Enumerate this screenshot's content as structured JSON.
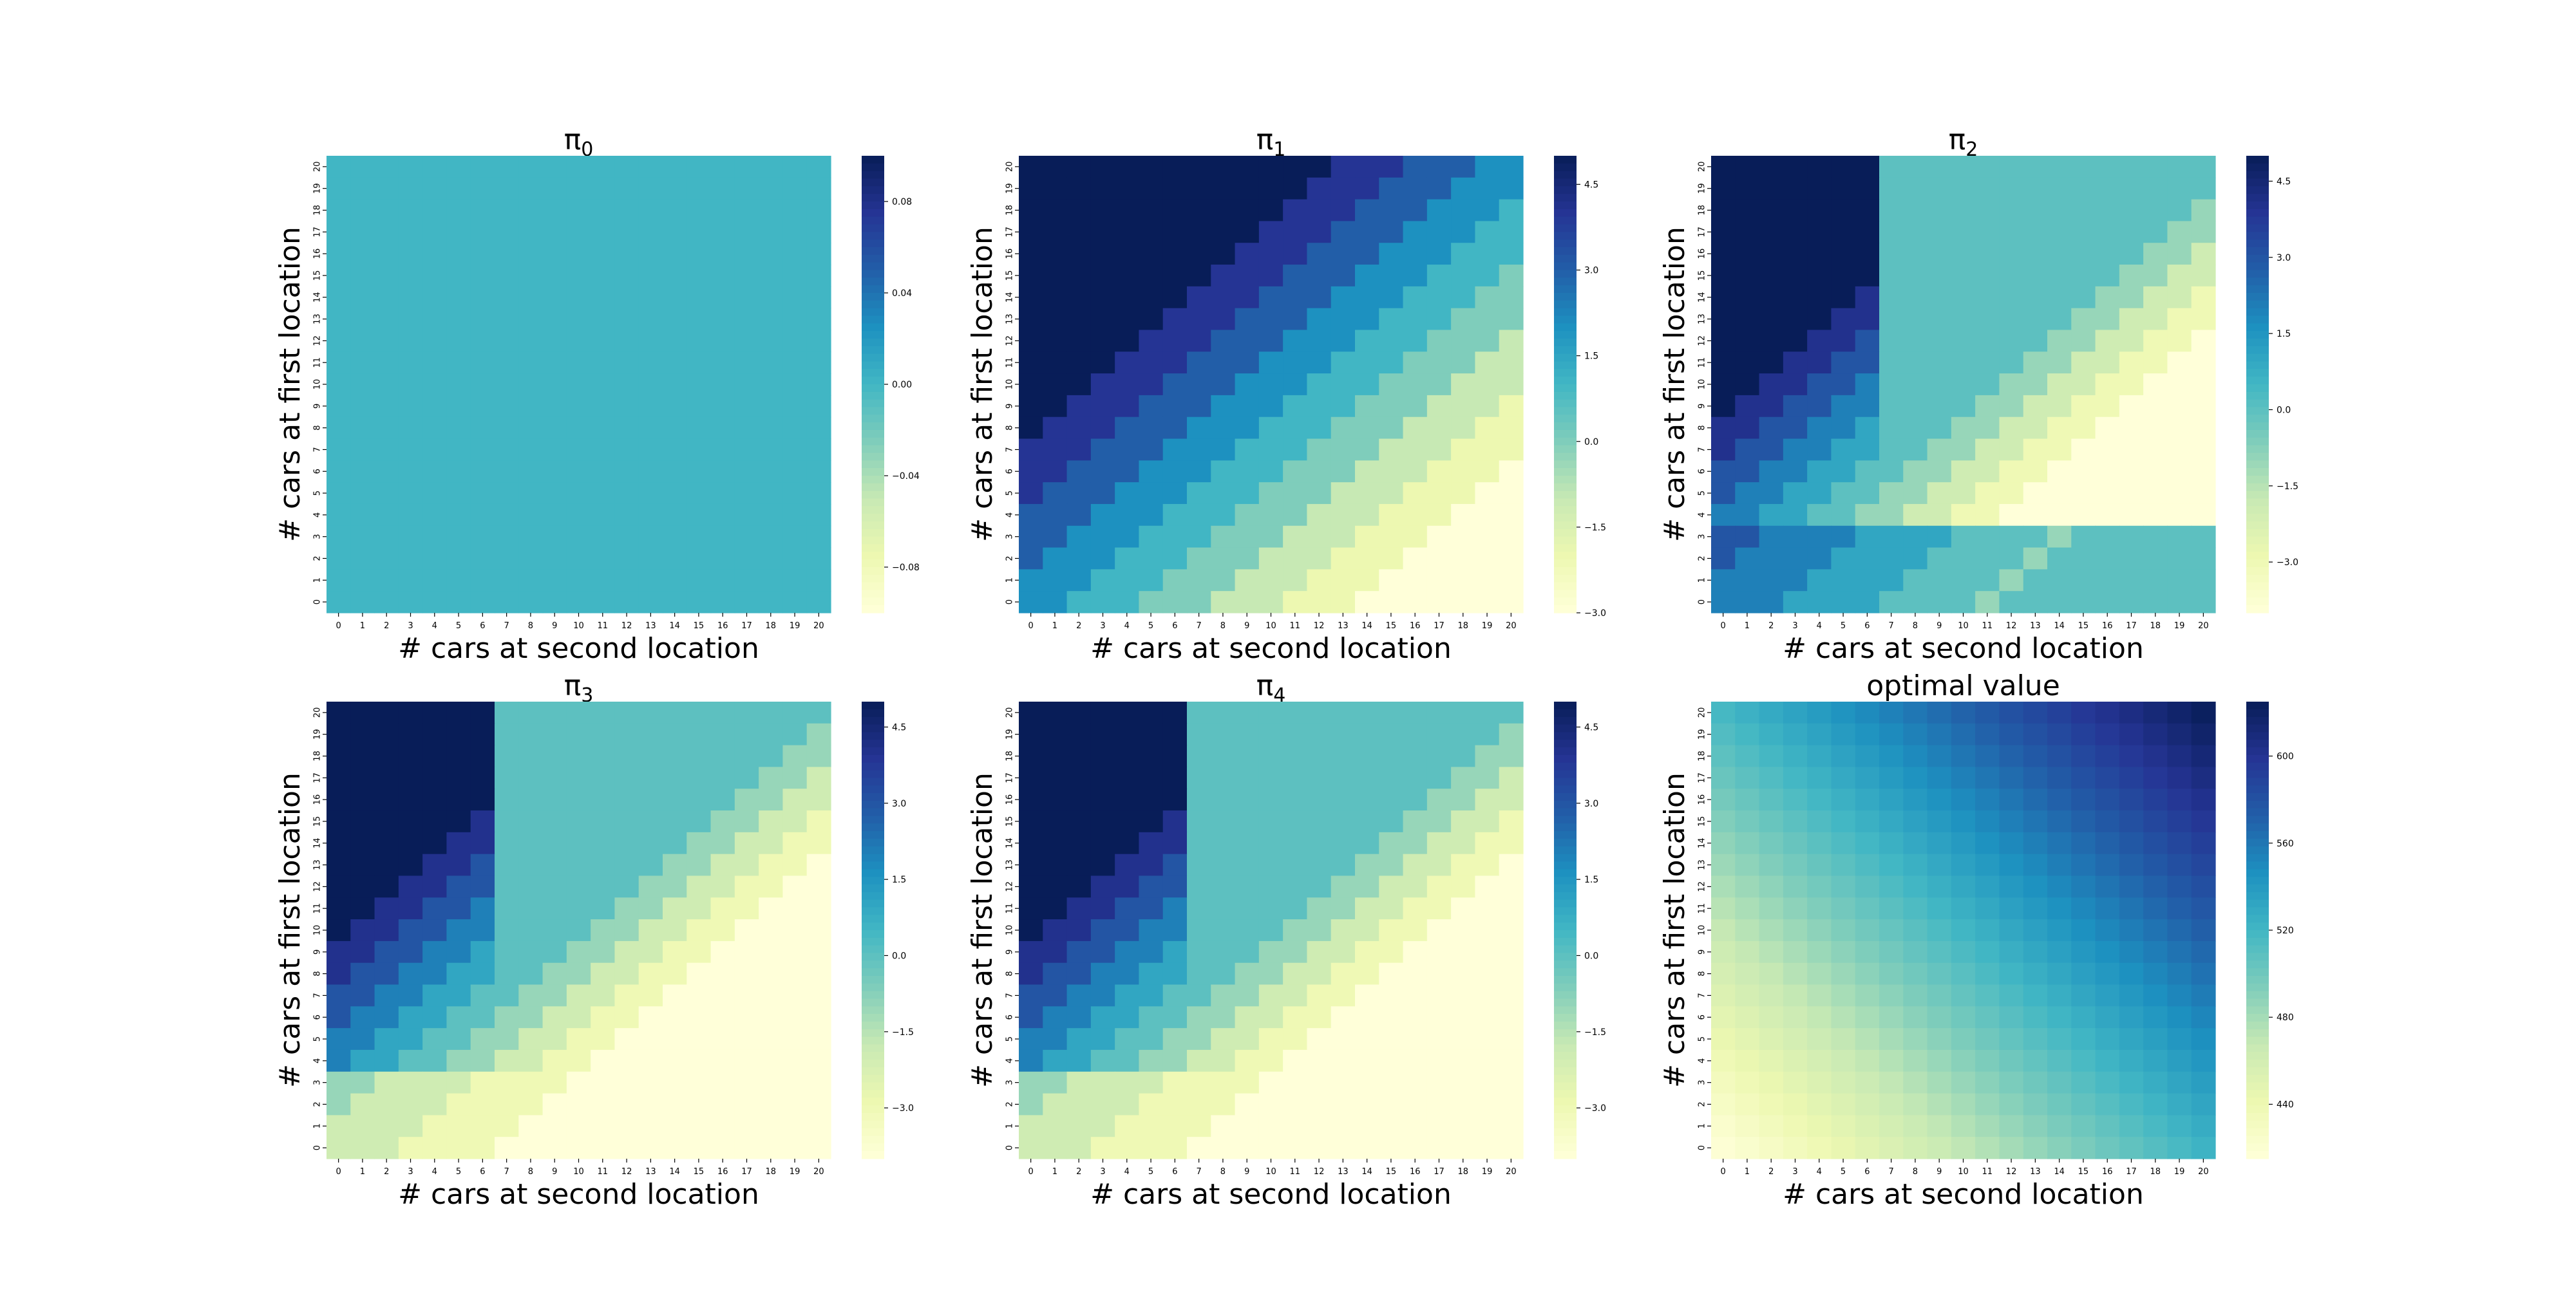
{
  "figure": {
    "rows": 2,
    "cols": 3
  },
  "colormap": {
    "name": "YlGnBu",
    "stops": [
      "#ffffd9",
      "#edf8b1",
      "#c7e9b4",
      "#7fcdbb",
      "#41b6c4",
      "#1d91c0",
      "#225ea8",
      "#253494",
      "#081d58"
    ]
  },
  "chart_data": [
    {
      "type": "heatmap",
      "title": "π₀",
      "title_main": "π",
      "title_sub": "0",
      "xlabel": "# cars at second location",
      "ylabel": "# cars at first location",
      "x_ticks": [
        "0",
        "1",
        "2",
        "3",
        "4",
        "5",
        "6",
        "7",
        "8",
        "9",
        "10",
        "11",
        "12",
        "13",
        "14",
        "15",
        "16",
        "17",
        "18",
        "19",
        "20"
      ],
      "y_ticks": [
        "20",
        "19",
        "18",
        "17",
        "16",
        "15",
        "14",
        "13",
        "12",
        "11",
        "10",
        "9",
        "8",
        "7",
        "6",
        "5",
        "4",
        "3",
        "2",
        "1",
        "0"
      ],
      "vmin": -0.1,
      "vmax": 0.1,
      "colorbar_ticks": [
        -0.08,
        -0.04,
        0.0,
        0.04,
        0.08
      ],
      "colorbar_labels": [
        "−0.08",
        "−0.04",
        "0.00",
        "0.04",
        "0.08"
      ],
      "value_rule": "all_zero"
    },
    {
      "type": "heatmap",
      "title": "π₁",
      "title_main": "π",
      "title_sub": "1",
      "xlabel": "# cars at second location",
      "ylabel": "# cars at first location",
      "x_ticks": [
        "0",
        "1",
        "2",
        "3",
        "4",
        "5",
        "6",
        "7",
        "8",
        "9",
        "10",
        "11",
        "12",
        "13",
        "14",
        "15",
        "16",
        "17",
        "18",
        "19",
        "20"
      ],
      "y_ticks": [
        "20",
        "19",
        "18",
        "17",
        "16",
        "15",
        "14",
        "13",
        "12",
        "11",
        "10",
        "9",
        "8",
        "7",
        "6",
        "5",
        "4",
        "3",
        "2",
        "1",
        "0"
      ],
      "vmin": -3.0,
      "vmax": 5.0,
      "colorbar_ticks": [
        -3.0,
        -1.5,
        0.0,
        1.5,
        3.0,
        4.5
      ],
      "colorbar_labels": [
        "−3.0",
        "−1.5",
        "0.0",
        "1.5",
        "3.0",
        "4.5"
      ],
      "value_rule": "policy_1"
    },
    {
      "type": "heatmap",
      "title": "π₂",
      "title_main": "π",
      "title_sub": "2",
      "xlabel": "# cars at second location",
      "ylabel": "# cars at first location",
      "x_ticks": [
        "0",
        "1",
        "2",
        "3",
        "4",
        "5",
        "6",
        "7",
        "8",
        "9",
        "10",
        "11",
        "12",
        "13",
        "14",
        "15",
        "16",
        "17",
        "18",
        "19",
        "20"
      ],
      "y_ticks": [
        "20",
        "19",
        "18",
        "17",
        "16",
        "15",
        "14",
        "13",
        "12",
        "11",
        "10",
        "9",
        "8",
        "7",
        "6",
        "5",
        "4",
        "3",
        "2",
        "1",
        "0"
      ],
      "vmin": -4.0,
      "vmax": 5.0,
      "colorbar_ticks": [
        -3.0,
        -1.5,
        0.0,
        1.5,
        3.0,
        4.5
      ],
      "colorbar_labels": [
        "−3.0",
        "−1.5",
        "0.0",
        "1.5",
        "3.0",
        "4.5"
      ],
      "value_rule": "policy_2"
    },
    {
      "type": "heatmap",
      "title": "π₃",
      "title_main": "π",
      "title_sub": "3",
      "xlabel": "# cars at second location",
      "ylabel": "# cars at first location",
      "x_ticks": [
        "0",
        "1",
        "2",
        "3",
        "4",
        "5",
        "6",
        "7",
        "8",
        "9",
        "10",
        "11",
        "12",
        "13",
        "14",
        "15",
        "16",
        "17",
        "18",
        "19",
        "20"
      ],
      "y_ticks": [
        "20",
        "19",
        "18",
        "17",
        "16",
        "15",
        "14",
        "13",
        "12",
        "11",
        "10",
        "9",
        "8",
        "7",
        "6",
        "5",
        "4",
        "3",
        "2",
        "1",
        "0"
      ],
      "vmin": -4.0,
      "vmax": 5.0,
      "colorbar_ticks": [
        -3.0,
        -1.5,
        0.0,
        1.5,
        3.0,
        4.5
      ],
      "colorbar_labels": [
        "−3.0",
        "−1.5",
        "0.0",
        "1.5",
        "3.0",
        "4.5"
      ],
      "value_rule": "policy_3"
    },
    {
      "type": "heatmap",
      "title": "π₄",
      "title_main": "π",
      "title_sub": "4",
      "xlabel": "# cars at second location",
      "ylabel": "# cars at first location",
      "x_ticks": [
        "0",
        "1",
        "2",
        "3",
        "4",
        "5",
        "6",
        "7",
        "8",
        "9",
        "10",
        "11",
        "12",
        "13",
        "14",
        "15",
        "16",
        "17",
        "18",
        "19",
        "20"
      ],
      "y_ticks": [
        "20",
        "19",
        "18",
        "17",
        "16",
        "15",
        "14",
        "13",
        "12",
        "11",
        "10",
        "9",
        "8",
        "7",
        "6",
        "5",
        "4",
        "3",
        "2",
        "1",
        "0"
      ],
      "vmin": -4.0,
      "vmax": 5.0,
      "colorbar_ticks": [
        -3.0,
        -1.5,
        0.0,
        1.5,
        3.0,
        4.5
      ],
      "colorbar_labels": [
        "−3.0",
        "−1.5",
        "0.0",
        "1.5",
        "3.0",
        "4.5"
      ],
      "value_rule": "policy_3"
    },
    {
      "type": "heatmap",
      "title": "optimal value",
      "xlabel": "# cars at second location",
      "ylabel": "# cars at first location",
      "x_ticks": [
        "0",
        "1",
        "2",
        "3",
        "4",
        "5",
        "6",
        "7",
        "8",
        "9",
        "10",
        "11",
        "12",
        "13",
        "14",
        "15",
        "16",
        "17",
        "18",
        "19",
        "20"
      ],
      "y_ticks": [
        "20",
        "19",
        "18",
        "17",
        "16",
        "15",
        "14",
        "13",
        "12",
        "11",
        "10",
        "9",
        "8",
        "7",
        "6",
        "5",
        "4",
        "3",
        "2",
        "1",
        "0"
      ],
      "vmin": 415,
      "vmax": 625,
      "colorbar_ticks": [
        440,
        480,
        520,
        560,
        600
      ],
      "colorbar_labels": [
        "440",
        "480",
        "520",
        "560",
        "600"
      ],
      "value_rule": "value_function"
    }
  ]
}
